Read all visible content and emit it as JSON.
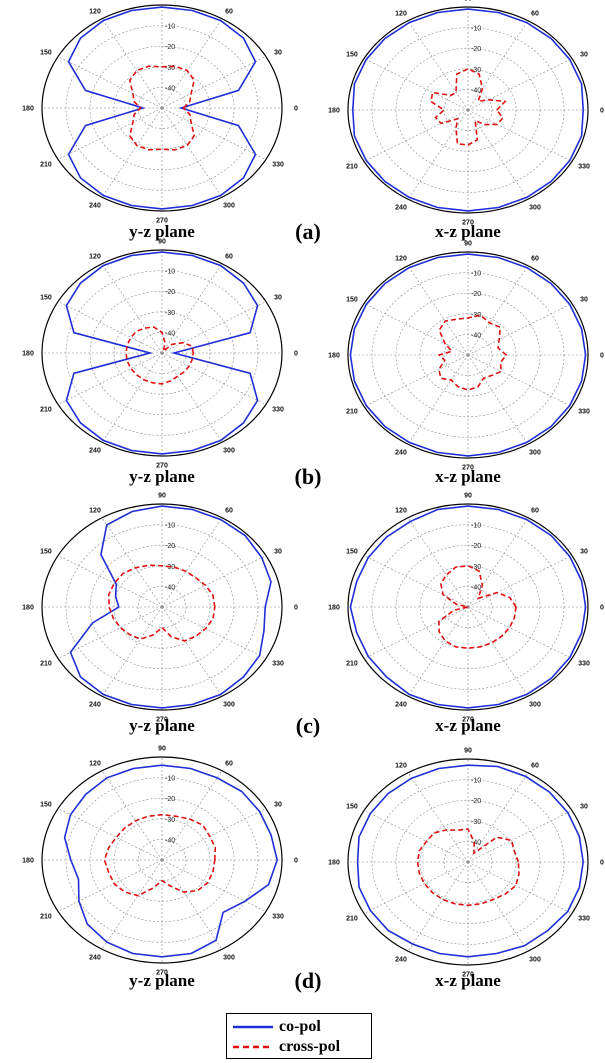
{
  "panel_labels": [
    "(a)",
    "(b)",
    "(c)",
    "(d)"
  ],
  "plane_labels": [
    "y-z plane",
    "x-z plane"
  ],
  "legend": [
    {
      "label": "co-pol",
      "color": "#1f2fd6",
      "style": "solid"
    },
    {
      "label": "cross-pol",
      "color": "#e01010",
      "style": "dashed"
    }
  ],
  "chart_data": [
    {
      "type": "polar-line",
      "panel": "(a)",
      "plane": "y-z plane",
      "angle_ticks": [
        "0",
        "30",
        "60",
        "90",
        "120",
        "150",
        "180",
        "210",
        "240",
        "270",
        "300",
        "330"
      ],
      "radial_ticks": [
        "-10",
        "-20",
        "-30",
        "-40"
      ],
      "rlim": [
        -50,
        0
      ],
      "grid": true,
      "series": [
        {
          "name": "co-pol",
          "angles": [
            0,
            15,
            30,
            45,
            60,
            75,
            90,
            105,
            120,
            135,
            150,
            165,
            180,
            195,
            210,
            225,
            240,
            255,
            270,
            285,
            300,
            315,
            330,
            345
          ],
          "values": [
            -42,
            -17,
            -5,
            -2,
            -1,
            -1,
            -1,
            -1,
            -1,
            -2,
            -5,
            -17,
            -42,
            -17,
            -5,
            -2,
            -1,
            -1,
            -1,
            -1,
            -1,
            -2,
            -5,
            -17
          ]
        },
        {
          "name": "cross-pol",
          "angles": [
            0,
            15,
            30,
            45,
            60,
            75,
            90,
            105,
            120,
            135,
            150,
            165,
            180,
            195,
            210,
            225,
            240,
            255,
            270,
            285,
            300,
            315,
            330,
            345
          ],
          "values": [
            -41,
            -38,
            -36,
            -31,
            -29,
            -29,
            -30,
            -29,
            -29,
            -31,
            -36,
            -38,
            -41,
            -38,
            -36,
            -31,
            -29,
            -29,
            -30,
            -29,
            -29,
            -31,
            -36,
            -38
          ]
        }
      ]
    },
    {
      "type": "polar-line",
      "panel": "(a)",
      "plane": "x-z plane",
      "angle_ticks": [
        "0",
        "30",
        "60",
        "90",
        "120",
        "150",
        "180",
        "210",
        "240",
        "270",
        "300",
        "330"
      ],
      "radial_ticks": [
        "-10",
        "-20",
        "-30",
        "-40"
      ],
      "rlim": [
        -50,
        0
      ],
      "grid": true,
      "series": [
        {
          "name": "co-pol",
          "angles": [
            0,
            15,
            30,
            45,
            60,
            75,
            90,
            105,
            120,
            135,
            150,
            165,
            180,
            195,
            210,
            225,
            240,
            255,
            270,
            285,
            300,
            315,
            330,
            345
          ],
          "values": [
            -2,
            -1,
            -1,
            -1,
            -1,
            -1,
            -1,
            -1,
            -1,
            -1,
            -1,
            -1,
            -2,
            -1,
            -1,
            -1,
            -1,
            -1,
            -1,
            -1,
            -1,
            -1,
            -1,
            -1
          ]
        },
        {
          "name": "cross-pol",
          "angles": [
            0,
            15,
            30,
            45,
            60,
            75,
            90,
            105,
            120,
            135,
            150,
            165,
            180,
            195,
            210,
            225,
            240,
            255,
            270,
            285,
            300,
            315,
            330,
            345
          ],
          "values": [
            -38,
            -34,
            -40,
            -44,
            -38,
            -32,
            -30,
            -32,
            -40,
            -40,
            -33,
            -34,
            -40,
            -36,
            -37,
            -44,
            -40,
            -33,
            -33,
            -35,
            -44,
            -40,
            -36,
            -35
          ]
        }
      ]
    },
    {
      "type": "polar-line",
      "panel": "(b)",
      "plane": "y-z plane",
      "angle_ticks": [
        "0",
        "30",
        "60",
        "90",
        "120",
        "150",
        "180",
        "210",
        "240",
        "270",
        "300",
        "330"
      ],
      "radial_ticks": [
        "-10",
        "-20",
        "-30",
        "-40"
      ],
      "rlim": [
        -50,
        0
      ],
      "grid": true,
      "series": [
        {
          "name": "co-pol",
          "angles": [
            0,
            15,
            30,
            45,
            60,
            75,
            90,
            105,
            120,
            135,
            150,
            165,
            180,
            195,
            210,
            225,
            240,
            255,
            270,
            285,
            300,
            315,
            330,
            345
          ],
          "values": [
            -45,
            -12,
            -4,
            -2,
            -1,
            -1,
            -1,
            -1,
            -1,
            -2,
            -4,
            -12,
            -45,
            -12,
            -4,
            -2,
            -1,
            -1,
            -1,
            -1,
            -1,
            -2,
            -4,
            -12
          ]
        },
        {
          "name": "cross-pol",
          "angles": [
            0,
            15,
            30,
            45,
            60,
            75,
            90,
            105,
            120,
            135,
            150,
            165,
            180,
            195,
            210,
            225,
            240,
            255,
            270,
            285,
            300,
            315,
            330,
            345
          ],
          "values": [
            -37,
            -37,
            -40,
            -44,
            -49,
            -45,
            -40,
            -37,
            -36,
            -35,
            -35,
            -35,
            -35,
            -35,
            -35,
            -35,
            -35,
            -35,
            -35,
            -36,
            -37,
            -37,
            -37,
            -37
          ]
        }
      ]
    },
    {
      "type": "polar-line",
      "panel": "(b)",
      "plane": "x-z plane",
      "angle_ticks": [
        "0",
        "30",
        "60",
        "90",
        "120",
        "150",
        "180",
        "210",
        "240",
        "270",
        "300",
        "330"
      ],
      "radial_ticks": [
        "-10",
        "-20",
        "-30",
        "-40"
      ],
      "rlim": [
        -50,
        0
      ],
      "grid": true,
      "series": [
        {
          "name": "co-pol",
          "angles": [
            0,
            15,
            30,
            45,
            60,
            75,
            90,
            105,
            120,
            135,
            150,
            165,
            180,
            195,
            210,
            225,
            240,
            255,
            270,
            285,
            300,
            315,
            330,
            345
          ],
          "values": [
            -1,
            -1,
            -1,
            -1,
            -1,
            -1,
            -1,
            -1,
            -1,
            -1,
            -1,
            -1,
            -1,
            -1,
            -1,
            -1,
            -1,
            -1,
            -1,
            -1,
            -1,
            -1,
            -1,
            -1
          ]
        },
        {
          "name": "cross-pol",
          "angles": [
            0,
            15,
            30,
            45,
            60,
            75,
            90,
            105,
            120,
            135,
            150,
            165,
            180,
            195,
            210,
            225,
            240,
            255,
            270,
            285,
            300,
            315,
            330,
            345
          ],
          "values": [
            -34,
            -37,
            -35,
            -31,
            -32,
            -30,
            -32,
            -32,
            -31,
            -33,
            -39,
            -43,
            -38,
            -40,
            -36,
            -34,
            -36,
            -34,
            -33,
            -34,
            -37,
            -36,
            -34,
            -36
          ]
        }
      ]
    },
    {
      "type": "polar-line",
      "panel": "(c)",
      "plane": "y-z plane",
      "angle_ticks": [
        "0",
        "30",
        "60",
        "90",
        "120",
        "150",
        "180",
        "210",
        "240",
        "270",
        "300",
        "330"
      ],
      "radial_ticks": [
        "-10",
        "-20",
        "-30",
        "-40"
      ],
      "rlim": [
        -50,
        0
      ],
      "grid": true,
      "series": [
        {
          "name": "co-pol",
          "angles": [
            0,
            15,
            30,
            45,
            60,
            75,
            90,
            105,
            120,
            135,
            150,
            165,
            180,
            195,
            210,
            225,
            240,
            255,
            270,
            285,
            300,
            315,
            330,
            345
          ],
          "values": [
            -7,
            -3,
            -2,
            -1,
            -1,
            -1,
            -1,
            -2,
            -4,
            -14,
            -28,
            -30,
            -32,
            -20,
            -6,
            -2,
            -1,
            -1,
            -1,
            -1,
            -1,
            -2,
            -3,
            -6
          ]
        },
        {
          "name": "cross-pol",
          "angles": [
            0,
            15,
            30,
            45,
            60,
            75,
            90,
            105,
            120,
            135,
            150,
            165,
            180,
            195,
            210,
            225,
            240,
            255,
            270,
            285,
            300,
            315,
            330,
            345
          ],
          "values": [
            -28,
            -28,
            -29,
            -30,
            -30,
            -30,
            -30,
            -29,
            -28,
            -27,
            -27,
            -27,
            -28,
            -29,
            -30,
            -31,
            -32,
            -36,
            -40,
            -35,
            -31,
            -30,
            -29,
            -28
          ]
        }
      ]
    },
    {
      "type": "polar-line",
      "panel": "(c)",
      "plane": "x-z plane",
      "angle_ticks": [
        "0",
        "30",
        "60",
        "90",
        "120",
        "150",
        "180",
        "210",
        "240",
        "270",
        "300",
        "330"
      ],
      "radial_ticks": [
        "-10",
        "-20",
        "-30",
        "-40"
      ],
      "rlim": [
        -50,
        0
      ],
      "grid": true,
      "series": [
        {
          "name": "co-pol",
          "angles": [
            0,
            15,
            30,
            45,
            60,
            75,
            90,
            105,
            120,
            135,
            150,
            165,
            180,
            195,
            210,
            225,
            240,
            255,
            270,
            285,
            300,
            315,
            330,
            345
          ],
          "values": [
            -1,
            -1,
            -1,
            -1,
            -1,
            -1,
            -1,
            -1,
            -2,
            -2,
            -2,
            -2,
            -1,
            -2,
            -2,
            -2,
            -1,
            -1,
            -1,
            -1,
            -1,
            -1,
            -1,
            -1
          ]
        },
        {
          "name": "cross-pol",
          "angles": [
            0,
            15,
            30,
            45,
            60,
            75,
            90,
            105,
            120,
            135,
            150,
            165,
            180,
            195,
            210,
            225,
            240,
            255,
            270,
            285,
            300,
            315,
            330,
            345
          ],
          "values": [
            -30,
            -32,
            -36,
            -44,
            -38,
            -32,
            -30,
            -30,
            -32,
            -34,
            -38,
            -45,
            -50,
            -44,
            -36,
            -33,
            -31,
            -30,
            -30,
            -30,
            -30,
            -30,
            -30,
            -30
          ]
        }
      ]
    },
    {
      "type": "polar-line",
      "panel": "(d)",
      "plane": "y-z plane",
      "angle_ticks": [
        "0",
        "30",
        "60",
        "90",
        "120",
        "150",
        "180",
        "210",
        "240",
        "270",
        "300",
        "330"
      ],
      "radial_ticks": [
        "-10",
        "-20",
        "-30",
        "-40"
      ],
      "rlim": [
        -50,
        0
      ],
      "grid": true,
      "series": [
        {
          "name": "co-pol",
          "angles": [
            0,
            15,
            30,
            45,
            60,
            75,
            90,
            105,
            120,
            135,
            150,
            165,
            180,
            195,
            210,
            225,
            240,
            255,
            270,
            285,
            300,
            315,
            330,
            345
          ],
          "values": [
            -2,
            -3,
            -3,
            -3,
            -4,
            -4,
            -4,
            -4,
            -4,
            -5,
            -6,
            -8,
            -12,
            -14,
            -10,
            -6,
            -4,
            -3,
            -3,
            -3,
            -5,
            -14,
            -10,
            -4
          ]
        },
        {
          "name": "cross-pol",
          "angles": [
            0,
            15,
            30,
            45,
            60,
            75,
            90,
            105,
            120,
            135,
            150,
            165,
            180,
            195,
            210,
            225,
            240,
            255,
            270,
            285,
            300,
            315,
            330,
            345
          ],
          "values": [
            -28,
            -27,
            -27,
            -26,
            -27,
            -28,
            -28,
            -28,
            -28,
            -28,
            -28,
            -27,
            -26,
            -27,
            -27,
            -28,
            -30,
            -36,
            -40,
            -37,
            -32,
            -29,
            -28,
            -28
          ]
        }
      ]
    },
    {
      "type": "polar-line",
      "panel": "(d)",
      "plane": "x-z plane",
      "angle_ticks": [
        "0",
        "30",
        "60",
        "90",
        "120",
        "150",
        "180",
        "210",
        "240",
        "270",
        "300",
        "330"
      ],
      "radial_ticks": [
        "-10",
        "-20",
        "-30",
        "-40"
      ],
      "rlim": [
        -50,
        0
      ],
      "grid": true,
      "series": [
        {
          "name": "co-pol",
          "angles": [
            0,
            15,
            30,
            45,
            60,
            75,
            90,
            105,
            120,
            135,
            150,
            165,
            180,
            195,
            210,
            225,
            240,
            255,
            270,
            285,
            300,
            315,
            330,
            345
          ],
          "values": [
            -2,
            -2,
            -2,
            -2,
            -2,
            -2,
            -3,
            -3,
            -3,
            -3,
            -3,
            -3,
            -4,
            -3,
            -3,
            -3,
            -4,
            -4,
            -4,
            -4,
            -3,
            -3,
            -2,
            -2
          ]
        },
        {
          "name": "cross-pol",
          "angles": [
            0,
            15,
            30,
            45,
            60,
            75,
            90,
            105,
            120,
            135,
            150,
            165,
            180,
            195,
            210,
            225,
            240,
            255,
            270,
            285,
            300,
            315,
            330,
            345
          ],
          "values": [
            -29,
            -30,
            -29,
            -33,
            -45,
            -40,
            -34,
            -34,
            -32,
            -30,
            -30,
            -29,
            -29,
            -29,
            -29,
            -29,
            -29,
            -29,
            -29,
            -29,
            -29,
            -28,
            -27,
            -28
          ]
        }
      ]
    }
  ]
}
